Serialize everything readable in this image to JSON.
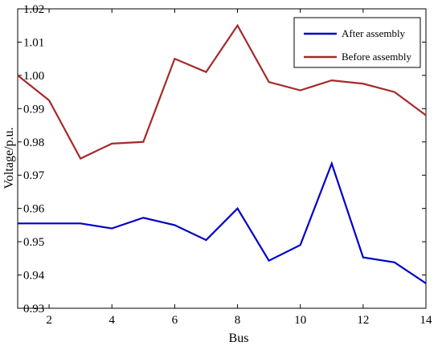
{
  "chart_data": {
    "type": "line",
    "title": "",
    "xlabel": "Bus",
    "ylabel": "Voltage/p.u.",
    "xlim": [
      1,
      14
    ],
    "ylim": [
      0.93,
      1.02
    ],
    "x_ticks": [
      2,
      4,
      6,
      8,
      10,
      12,
      14
    ],
    "y_ticks": [
      0.93,
      0.94,
      0.95,
      0.96,
      0.97,
      0.98,
      0.99,
      1.0,
      1.01,
      1.02
    ],
    "y_tick_labels": [
      "0.93",
      "0.94",
      "0.95",
      "0.96",
      "0.97",
      "0.98",
      "0.99",
      "1.00",
      "1.01",
      "1.02"
    ],
    "grid": false,
    "legend_position": "top-right",
    "x": [
      1,
      2,
      3,
      4,
      5,
      6,
      7,
      8,
      9,
      10,
      11,
      12,
      13,
      14
    ],
    "series": [
      {
        "name": "After assembly",
        "color": "#0000c8",
        "values": [
          0.9555,
          0.9555,
          0.9555,
          0.954,
          0.9572,
          0.955,
          0.9505,
          0.96,
          0.9443,
          0.949,
          0.9735,
          0.9453,
          0.9438,
          0.9375
        ]
      },
      {
        "name": "Before assembly",
        "color": "#a52a2a",
        "values": [
          1.0,
          0.9925,
          0.975,
          0.9795,
          0.98,
          1.005,
          1.001,
          1.015,
          0.998,
          0.9955,
          0.9985,
          0.9975,
          0.995,
          0.988
        ]
      }
    ]
  }
}
